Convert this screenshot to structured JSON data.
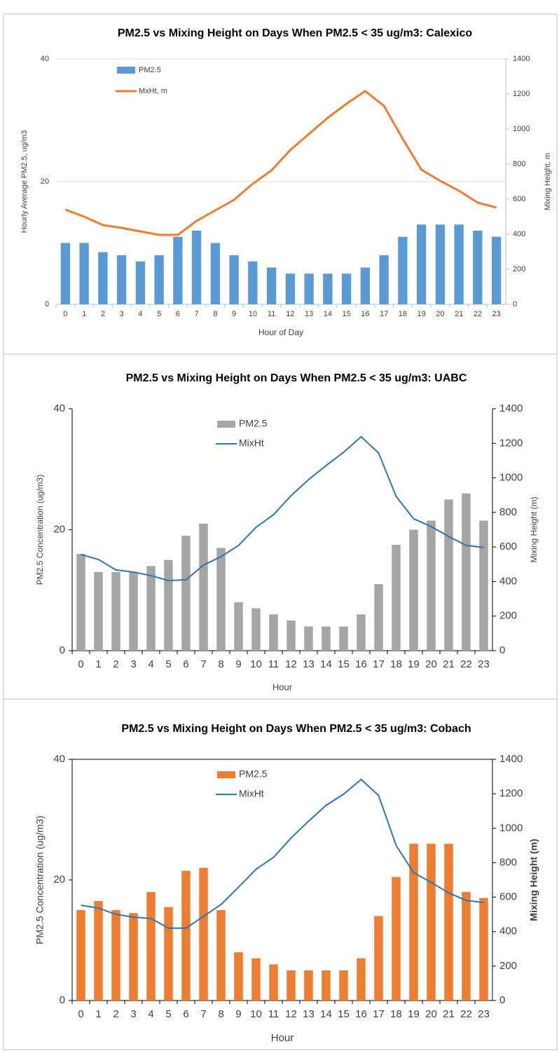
{
  "chart_data": [
    {
      "type": "bar",
      "title": "PM2.5 vs Mixing Height on Days When PM2.5 < 35 ug/m3: Calexico",
      "x_label": "Hour of Day",
      "y_label": "Hourly Average PM2.5, ug/m3",
      "y2_label": "Mixing Height, m",
      "categories": [
        "0",
        "1",
        "2",
        "3",
        "4",
        "5",
        "6",
        "7",
        "8",
        "9",
        "10",
        "11",
        "12",
        "13",
        "14",
        "15",
        "16",
        "17",
        "18",
        "19",
        "20",
        "21",
        "22",
        "23"
      ],
      "series": [
        {
          "name": "PM2.5",
          "type": "bar",
          "color": "#5b9bd5",
          "values": [
            10,
            10,
            8.5,
            8,
            7,
            8,
            11,
            12,
            10,
            8,
            7,
            6,
            5,
            5,
            5,
            5,
            6,
            8,
            11,
            13,
            13,
            13,
            12,
            11
          ]
        },
        {
          "name": "MxHt, m",
          "type": "line",
          "axis": "y2",
          "color": "#ed7d31",
          "values": [
            540,
            500,
            452,
            436,
            416,
            396,
            396,
            476,
            536,
            596,
            688,
            764,
            880,
            972,
            1064,
            1144,
            1216,
            1132,
            944,
            768,
            704,
            648,
            580,
            552
          ]
        }
      ],
      "ylim": [
        0,
        40
      ],
      "yticks": [
        0,
        20,
        40
      ],
      "y2lim": [
        0,
        1400
      ],
      "y2ticks": [
        0,
        200,
        400,
        600,
        800,
        1000,
        1200,
        1400
      ],
      "grid": true
    },
    {
      "type": "bar",
      "title": "PM2.5 vs Mixing Height on Days When PM2.5 < 35 ug/m3: UABC",
      "x_label": "Hour",
      "y_label": "PM2.5 Concentration (ug/m3)",
      "y2_label": "Mixing Height (m)",
      "categories": [
        "0",
        "1",
        "2",
        "3",
        "4",
        "5",
        "6",
        "7",
        "8",
        "9",
        "10",
        "11",
        "12",
        "13",
        "14",
        "15",
        "16",
        "17",
        "18",
        "19",
        "20",
        "21",
        "22",
        "23"
      ],
      "series": [
        {
          "name": "PM2.5",
          "type": "bar",
          "color": "#a5a5a5",
          "values": [
            16,
            13,
            13,
            13,
            14,
            15,
            19,
            21,
            17,
            8,
            7,
            6,
            5,
            4,
            4,
            4,
            6,
            11,
            17.5,
            20,
            21.5,
            25,
            26,
            21.5
          ]
        },
        {
          "name": "MixHt",
          "type": "line",
          "axis": "y2",
          "color": "#2e75b6",
          "values": [
            556,
            528,
            467,
            455,
            434,
            406,
            410,
            495,
            544,
            609,
            714,
            787,
            897,
            990,
            1071,
            1148,
            1238,
            1144,
            893,
            763,
            718,
            661,
            609,
            597
          ]
        }
      ],
      "ylim": [
        0,
        40
      ],
      "yticks": [
        0,
        20,
        40
      ],
      "y2lim": [
        0,
        1400
      ],
      "y2ticks": [
        0,
        200,
        400,
        600,
        800,
        1000,
        1200,
        1400
      ],
      "grid": false
    },
    {
      "type": "bar",
      "title": "PM2.5 vs Mixing Height on Days When PM2.5 < 35 ug/m3: Cobach",
      "x_label": "Hour",
      "y_label": "PM2.5 Concentration (ug/m3)",
      "y2_label": "Mixing Height (m)",
      "categories": [
        "0",
        "1",
        "2",
        "3",
        "4",
        "5",
        "6",
        "7",
        "8",
        "9",
        "10",
        "11",
        "12",
        "13",
        "14",
        "15",
        "16",
        "17",
        "18",
        "19",
        "20",
        "21",
        "22",
        "23"
      ],
      "series": [
        {
          "name": "PM2.5",
          "type": "bar",
          "color": "#ed7d31",
          "values": [
            15,
            16.5,
            15,
            14.5,
            18,
            15.5,
            21.5,
            22,
            15,
            8,
            7,
            6,
            5,
            5,
            5,
            5,
            7,
            14,
            20.5,
            26,
            26,
            26,
            18,
            17
          ]
        },
        {
          "name": "MixHt",
          "type": "line",
          "axis": "y2",
          "color": "#2e75b6",
          "values": [
            553,
            537,
            500,
            484,
            476,
            420,
            420,
            488,
            557,
            658,
            762,
            831,
            944,
            1041,
            1133,
            1198,
            1283,
            1190,
            900,
            742,
            686,
            625,
            581,
            569
          ]
        }
      ],
      "ylim": [
        0,
        40
      ],
      "yticks": [
        0,
        20,
        40
      ],
      "y2lim": [
        0,
        1400
      ],
      "y2ticks": [
        0,
        200,
        400,
        600,
        800,
        1000,
        1200,
        1400
      ],
      "grid": false
    }
  ]
}
